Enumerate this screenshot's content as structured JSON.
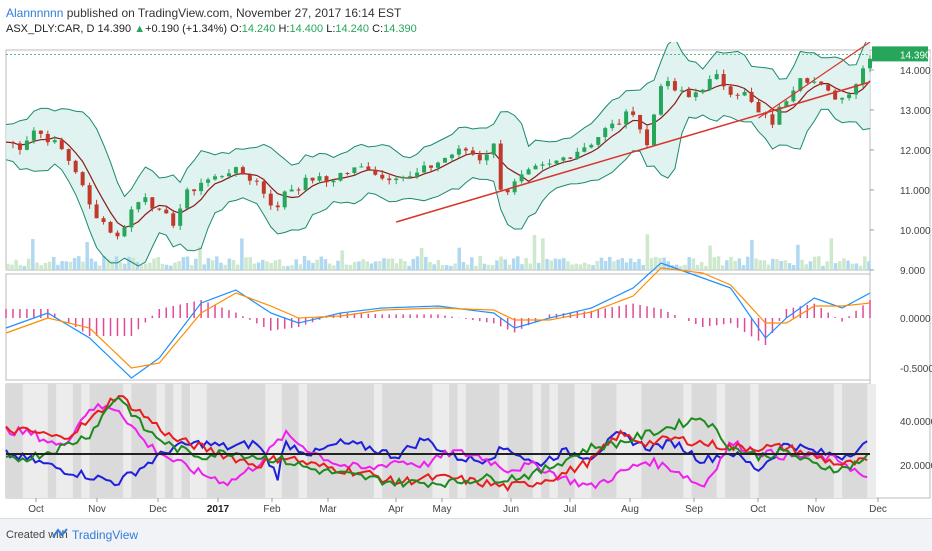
{
  "header": {
    "author": "Alannnnnn",
    "published_text": "published on TradingView.com, November 27, 2017 16:14 EST"
  },
  "ohlc": {
    "symbol": "ASX_DLY:CAR, D",
    "last": "14.390",
    "change": "+0.190 (+1.34%)",
    "o_label": "O:",
    "o": "14.240",
    "h_label": "H:",
    "h": "14.400",
    "l_label": "L:",
    "l": "14.240",
    "c_label": "C:",
    "c": "14.390"
  },
  "footer": {
    "created": "Created with",
    "brand": "TradingView"
  },
  "colors": {
    "candle_up": "#26a65b",
    "candle_down": "#c0392b",
    "bb": "#1a8a6e",
    "bb_fill": "#d8f0ec",
    "ma": "#8b1a1a",
    "trend": "#d9342b",
    "macd": "#1e90ff",
    "signal": "#ff8c00",
    "hist": "#e0489a",
    "blue_line": "#1f1fdd",
    "red_line": "#e81e1e",
    "green_line": "#1e8a1e",
    "magenta_line": "#f01ef0"
  },
  "chart_data": [
    {
      "type": "candlestick",
      "name": "price",
      "y_ticks": [
        "14.000",
        "13.000",
        "12.000",
        "11.000",
        "10.000",
        "9.000"
      ],
      "last_price_label": "14.390",
      "ylim": [
        9.0,
        14.5
      ],
      "x_ticks": [
        "Oct",
        "Nov",
        "Dec",
        "2017",
        "Feb",
        "Mar",
        "Apr",
        "May",
        "Jun",
        "Jul",
        "Aug",
        "Sep",
        "Oct",
        "Nov",
        "Dec"
      ],
      "anchors": [
        [
          0,
          12.2
        ],
        [
          10,
          12.1
        ],
        [
          20,
          12.5
        ],
        [
          30,
          12.3
        ],
        [
          40,
          12.0
        ],
        [
          50,
          11.5
        ],
        [
          60,
          10.6
        ],
        [
          70,
          10.2
        ],
        [
          80,
          9.8
        ],
        [
          90,
          10.5
        ],
        [
          100,
          10.9
        ],
        [
          110,
          10.4
        ],
        [
          120,
          10.2
        ],
        [
          130,
          10.9
        ],
        [
          140,
          11.2
        ],
        [
          150,
          11.3
        ],
        [
          160,
          11.5
        ],
        [
          170,
          11.4
        ],
        [
          180,
          11.2
        ],
        [
          190,
          10.7
        ],
        [
          195,
          10.5
        ],
        [
          200,
          11.0
        ],
        [
          210,
          11.1
        ],
        [
          220,
          11.3
        ],
        [
          230,
          11.2
        ],
        [
          240,
          11.4
        ],
        [
          250,
          11.5
        ],
        [
          260,
          11.6
        ],
        [
          270,
          11.3
        ],
        [
          280,
          11.4
        ],
        [
          290,
          11.3
        ],
        [
          300,
          11.5
        ],
        [
          310,
          11.7
        ],
        [
          320,
          11.9
        ],
        [
          330,
          12.0
        ],
        [
          340,
          11.8
        ],
        [
          350,
          12.1
        ],
        [
          355,
          11.1
        ],
        [
          360,
          11.0
        ],
        [
          370,
          11.3
        ],
        [
          380,
          11.5
        ],
        [
          390,
          11.6
        ],
        [
          400,
          11.8
        ],
        [
          410,
          12.0
        ],
        [
          420,
          12.2
        ],
        [
          430,
          12.5
        ],
        [
          440,
          12.7
        ],
        [
          450,
          13.0
        ],
        [
          460,
          12.1
        ],
        [
          470,
          13.7
        ],
        [
          480,
          13.5
        ],
        [
          490,
          13.3
        ],
        [
          500,
          13.6
        ],
        [
          510,
          13.8
        ],
        [
          520,
          13.5
        ],
        [
          530,
          13.4
        ],
        [
          540,
          12.9
        ],
        [
          550,
          12.7
        ],
        [
          560,
          13.3
        ],
        [
          570,
          13.9
        ],
        [
          580,
          13.7
        ],
        [
          590,
          13.4
        ],
        [
          600,
          13.3
        ],
        [
          610,
          13.7
        ],
        [
          620,
          14.39
        ]
      ],
      "volume_shape": "lower band with occasional spikes"
    },
    {
      "type": "line",
      "name": "macd",
      "y_ticks": [
        "0.0000",
        "-0.5000"
      ],
      "macd_anchors": [
        [
          0,
          -0.1
        ],
        [
          30,
          0.05
        ],
        [
          60,
          -0.2
        ],
        [
          90,
          -0.6
        ],
        [
          110,
          -0.4
        ],
        [
          140,
          0.15
        ],
        [
          165,
          0.28
        ],
        [
          190,
          0.05
        ],
        [
          210,
          -0.05
        ],
        [
          240,
          0.05
        ],
        [
          270,
          0.1
        ],
        [
          310,
          0.12
        ],
        [
          350,
          0.05
        ],
        [
          365,
          -0.1
        ],
        [
          390,
          0.0
        ],
        [
          420,
          0.1
        ],
        [
          450,
          0.3
        ],
        [
          470,
          0.55
        ],
        [
          500,
          0.4
        ],
        [
          520,
          0.3
        ],
        [
          545,
          -0.2
        ],
        [
          560,
          0.0
        ],
        [
          580,
          0.2
        ],
        [
          600,
          0.1
        ],
        [
          620,
          0.25
        ]
      ],
      "signal_anchors": [
        [
          0,
          -0.15
        ],
        [
          30,
          0.0
        ],
        [
          60,
          -0.1
        ],
        [
          90,
          -0.5
        ],
        [
          110,
          -0.45
        ],
        [
          140,
          0.05
        ],
        [
          165,
          0.25
        ],
        [
          190,
          0.12
        ],
        [
          210,
          0.0
        ],
        [
          240,
          0.02
        ],
        [
          270,
          0.08
        ],
        [
          310,
          0.1
        ],
        [
          350,
          0.08
        ],
        [
          365,
          -0.02
        ],
        [
          390,
          -0.02
        ],
        [
          420,
          0.06
        ],
        [
          450,
          0.22
        ],
        [
          470,
          0.5
        ],
        [
          500,
          0.45
        ],
        [
          520,
          0.33
        ],
        [
          545,
          -0.05
        ],
        [
          560,
          -0.05
        ],
        [
          580,
          0.12
        ],
        [
          600,
          0.12
        ],
        [
          620,
          0.15
        ]
      ]
    },
    {
      "type": "line",
      "name": "dmi",
      "y_ticks": [
        "40.0000",
        "20.0000"
      ],
      "level": 25,
      "blue_anchors": [
        [
          0,
          25
        ],
        [
          20,
          22
        ],
        [
          40,
          18
        ],
        [
          60,
          15
        ],
        [
          80,
          12
        ],
        [
          100,
          20
        ],
        [
          120,
          28
        ],
        [
          140,
          30
        ],
        [
          160,
          28
        ],
        [
          180,
          30
        ],
        [
          195,
          15
        ],
        [
          200,
          30
        ],
        [
          220,
          25
        ],
        [
          240,
          30
        ],
        [
          260,
          28
        ],
        [
          280,
          24
        ],
        [
          300,
          32
        ],
        [
          320,
          24
        ],
        [
          340,
          22
        ],
        [
          360,
          28
        ],
        [
          380,
          20
        ],
        [
          400,
          26
        ],
        [
          420,
          24
        ],
        [
          440,
          34
        ],
        [
          460,
          28
        ],
        [
          480,
          30
        ],
        [
          500,
          22
        ],
        [
          520,
          26
        ],
        [
          540,
          18
        ],
        [
          560,
          30
        ],
        [
          580,
          26
        ],
        [
          600,
          24
        ],
        [
          620,
          30
        ]
      ],
      "red_anchors": [
        [
          0,
          36
        ],
        [
          20,
          35
        ],
        [
          40,
          32
        ],
        [
          60,
          40
        ],
        [
          80,
          52
        ],
        [
          100,
          42
        ],
        [
          120,
          32
        ],
        [
          140,
          28
        ],
        [
          160,
          24
        ],
        [
          180,
          20
        ],
        [
          200,
          24
        ],
        [
          220,
          20
        ],
        [
          240,
          18
        ],
        [
          260,
          16
        ],
        [
          280,
          12
        ],
        [
          300,
          14
        ],
        [
          320,
          14
        ],
        [
          340,
          12
        ],
        [
          360,
          10
        ],
        [
          380,
          12
        ],
        [
          400,
          16
        ],
        [
          420,
          22
        ],
        [
          440,
          34
        ],
        [
          460,
          30
        ],
        [
          480,
          32
        ],
        [
          500,
          30
        ],
        [
          520,
          28
        ],
        [
          540,
          28
        ],
        [
          560,
          28
        ],
        [
          580,
          24
        ],
        [
          600,
          20
        ],
        [
          620,
          22
        ]
      ],
      "green_anchors": [
        [
          0,
          22
        ],
        [
          20,
          24
        ],
        [
          40,
          28
        ],
        [
          60,
          34
        ],
        [
          80,
          52
        ],
        [
          100,
          36
        ],
        [
          120,
          28
        ],
        [
          140,
          24
        ],
        [
          160,
          26
        ],
        [
          180,
          24
        ],
        [
          200,
          22
        ],
        [
          220,
          18
        ],
        [
          240,
          16
        ],
        [
          260,
          14
        ],
        [
          280,
          12
        ],
        [
          300,
          12
        ],
        [
          320,
          12
        ],
        [
          340,
          14
        ],
        [
          360,
          14
        ],
        [
          380,
          16
        ],
        [
          400,
          22
        ],
        [
          420,
          28
        ],
        [
          440,
          30
        ],
        [
          460,
          34
        ],
        [
          480,
          38
        ],
        [
          500,
          42
        ],
        [
          520,
          28
        ],
        [
          540,
          24
        ],
        [
          560,
          26
        ],
        [
          580,
          20
        ],
        [
          600,
          18
        ],
        [
          620,
          24
        ]
      ],
      "magenta_anchors": [
        [
          0,
          36
        ],
        [
          20,
          34
        ],
        [
          40,
          28
        ],
        [
          60,
          46
        ],
        [
          80,
          46
        ],
        [
          100,
          30
        ],
        [
          120,
          22
        ],
        [
          140,
          16
        ],
        [
          160,
          12
        ],
        [
          180,
          20
        ],
        [
          200,
          34
        ],
        [
          220,
          26
        ],
        [
          240,
          20
        ],
        [
          260,
          18
        ],
        [
          280,
          22
        ],
        [
          300,
          20
        ],
        [
          320,
          26
        ],
        [
          340,
          24
        ],
        [
          360,
          18
        ],
        [
          380,
          20
        ],
        [
          400,
          14
        ],
        [
          420,
          10
        ],
        [
          440,
          16
        ],
        [
          460,
          22
        ],
        [
          480,
          18
        ],
        [
          500,
          10
        ],
        [
          520,
          30
        ],
        [
          540,
          26
        ],
        [
          560,
          24
        ],
        [
          580,
          24
        ],
        [
          600,
          22
        ],
        [
          620,
          12
        ]
      ]
    }
  ]
}
